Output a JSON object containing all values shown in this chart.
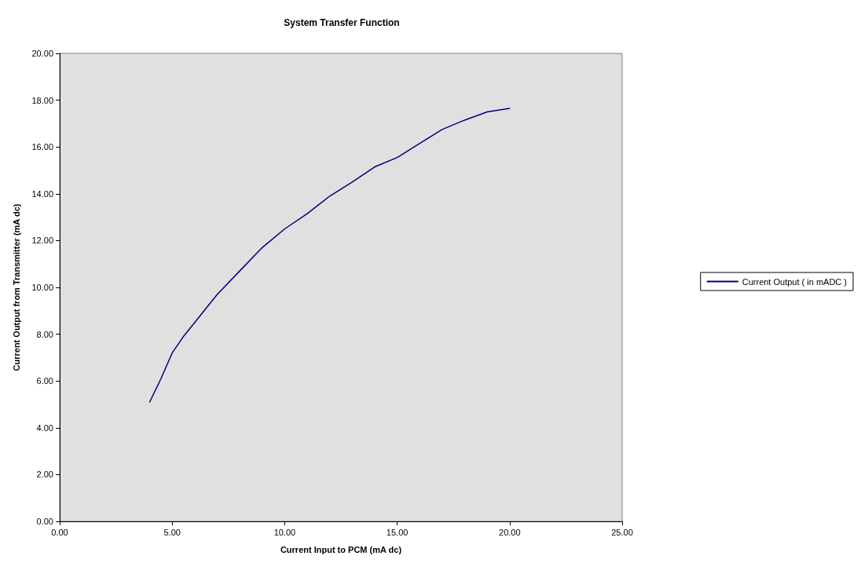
{
  "chart_data": {
    "type": "line",
    "title": "System Transfer Function",
    "xlabel": "Current Input to PCM (mA dc)",
    "ylabel": "Current Output from Transmitter (mA dc)",
    "x": [
      4,
      4.5,
      5,
      5.5,
      6,
      7,
      8,
      9,
      10,
      11,
      12,
      13,
      14,
      15,
      16,
      17,
      18,
      19,
      20
    ],
    "series": [
      {
        "name": "Current Output ( in mADC )",
        "color": "#000080",
        "values": [
          5.1,
          6.1,
          7.2,
          7.9,
          8.5,
          9.7,
          10.7,
          11.7,
          12.5,
          13.15,
          13.9,
          14.5,
          15.15,
          15.55,
          16.15,
          16.75,
          17.15,
          17.5,
          17.65
        ]
      }
    ],
    "xlim": [
      0,
      25
    ],
    "xticks": [
      {
        "value": 0,
        "label": "0.00"
      },
      {
        "value": 5,
        "label": "5.00"
      },
      {
        "value": 10,
        "label": "10.00"
      },
      {
        "value": 15,
        "label": "15.00"
      },
      {
        "value": 20,
        "label": "20.00"
      },
      {
        "value": 25,
        "label": "25.00"
      }
    ],
    "ylim": [
      0,
      20
    ],
    "yticks": [
      {
        "value": 0,
        "label": "0.00"
      },
      {
        "value": 2,
        "label": "2.00"
      },
      {
        "value": 4,
        "label": "4.00"
      },
      {
        "value": 6,
        "label": "6.00"
      },
      {
        "value": 8,
        "label": "8.00"
      },
      {
        "value": 10,
        "label": "10.00"
      },
      {
        "value": 12,
        "label": "12.00"
      },
      {
        "value": 14,
        "label": "14.00"
      },
      {
        "value": 16,
        "label": "16.00"
      },
      {
        "value": 18,
        "label": "18.00"
      },
      {
        "value": 20,
        "label": "20.00"
      }
    ],
    "grid": false,
    "legend": "right",
    "marker": "none",
    "line_style": "solid"
  }
}
